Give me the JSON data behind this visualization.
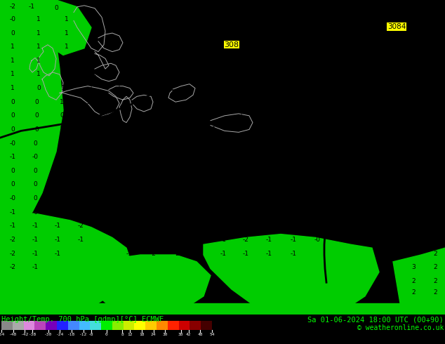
{
  "title_left": "Height/Temp. 700 hPa [gdmp][°C] ECMWF",
  "title_right": "Sa 01-06-2024 18:00 UTC (00+90)",
  "copyright": "© weatheronline.co.uk",
  "colorbar_labels": [
    "-54",
    "-48",
    "-42",
    "-38",
    "-30",
    "-24",
    "-18",
    "-12",
    "-8",
    "0",
    "8",
    "12",
    "18",
    "24",
    "30",
    "38",
    "42",
    "48",
    "54"
  ],
  "colorbar_values": [
    -54,
    -48,
    -42,
    -38,
    -30,
    -24,
    -18,
    -12,
    -8,
    0,
    8,
    12,
    18,
    24,
    30,
    38,
    42,
    48,
    54
  ],
  "fig_width": 6.34,
  "fig_height": 4.9,
  "dpi": 100,
  "cbar_colors": [
    "#888888",
    "#aaaaaa",
    "#dd88dd",
    "#bb44bb",
    "#7700bb",
    "#2222ff",
    "#4488ff",
    "#44bbff",
    "#44dddd",
    "#00ee00",
    "#88ee00",
    "#ccee00",
    "#ffff00",
    "#ffcc00",
    "#ff8800",
    "#ff2200",
    "#cc0000",
    "#880000",
    "#440000"
  ],
  "yellow": "#ffff00",
  "green": "#00cc00",
  "coast_color": "#aaaaaa",
  "contour_color": "#000000",
  "number_color_yellow": "#000000",
  "number_color_green": "#000000",
  "contour_label_308": "308",
  "contour_label_3084": "3084"
}
